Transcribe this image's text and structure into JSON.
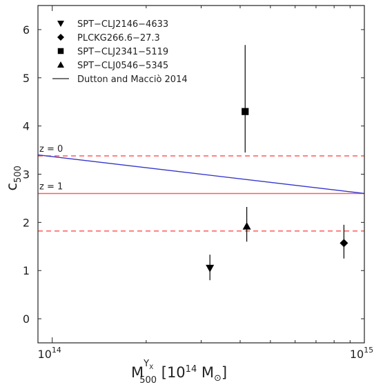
{
  "chart_data": {
    "type": "scatter",
    "xscale": "log",
    "xlim": [
      90000000000000,
      1000000000000000
    ],
    "ylim": [
      -0.5,
      6.5
    ],
    "x_ticks": [
      {
        "value": 100000000000000,
        "label_base": "10",
        "label_exp": "14"
      },
      {
        "value": 1000000000000000,
        "label_base": "10",
        "label_exp": "15"
      }
    ],
    "y_ticks": [
      0,
      1,
      2,
      3,
      4,
      5,
      6
    ],
    "xlabel": {
      "main": "M",
      "sub": "500",
      "sup": "Y",
      "sup_sub": "X",
      "units": "[10",
      "units_exp": "14",
      "units_rest": "M",
      "sun": "⊙",
      "close": "]"
    },
    "ylabel": {
      "main": "c",
      "sub": "500"
    },
    "legend_position": "top-left",
    "series": [
      {
        "name": "SPT−CLJ2146−4633",
        "marker": "triangle-down",
        "x": 320000000000000,
        "y": 1.05,
        "yerr_low": 0.8,
        "yerr_high": 1.33
      },
      {
        "name": "PLCKG266.6−27.3",
        "marker": "diamond",
        "x": 860000000000000,
        "y": 1.57,
        "yerr_low": 1.25,
        "yerr_high": 1.95
      },
      {
        "name": "SPT−CLJ2341−5119",
        "marker": "square",
        "x": 415000000000000,
        "y": 4.3,
        "yerr_low": 3.45,
        "yerr_high": 5.68
      },
      {
        "name": "SPT−CLJ0546−5345",
        "marker": "triangle-up",
        "x": 420000000000000,
        "y": 1.92,
        "yerr_low": 1.6,
        "yerr_high": 2.32
      }
    ],
    "lines": [
      {
        "name": "Dutton and Macciò 2014",
        "color": "#3333cc",
        "x": [
          90000000000000,
          1000000000000000
        ],
        "y": [
          3.4,
          2.6
        ]
      }
    ],
    "hlines": [
      {
        "y": 3.38,
        "style": "dashed",
        "color": "#ff5a5a"
      },
      {
        "y": 2.6,
        "style": "solid",
        "color": "#ff5a5a"
      },
      {
        "y": 1.82,
        "style": "dashed",
        "color": "#ff5a5a"
      }
    ],
    "annotations": [
      {
        "text": "z = 0",
        "x": 90000000000000,
        "y": 3.38
      },
      {
        "text": "z = 1",
        "x": 90000000000000,
        "y": 2.6
      }
    ]
  }
}
